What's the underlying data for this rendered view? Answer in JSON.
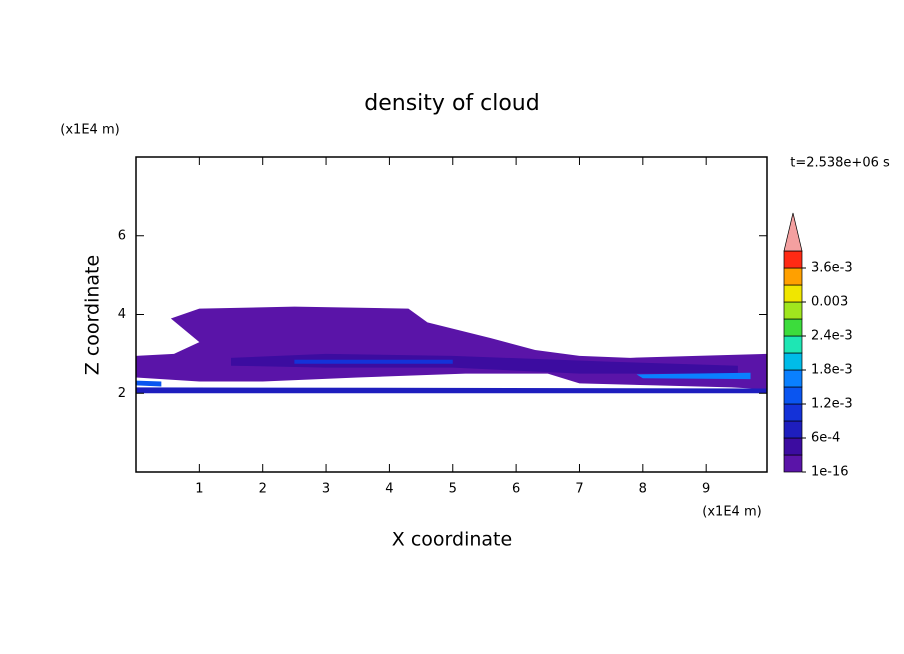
{
  "chart_data": {
    "type": "contourf",
    "title": "density of cloud",
    "x_label": "X coordinate",
    "y_label": "Z coordinate",
    "x_unit": "(x1E4 m)",
    "y_unit": "(x1E4 m)",
    "time_label": "t=2.538e+06 s",
    "xlim": [
      0,
      9.96
    ],
    "ylim": [
      0,
      8
    ],
    "xticks": [
      1,
      2,
      3,
      4,
      5,
      6,
      7,
      8,
      9
    ],
    "yticks": [
      2,
      4,
      6
    ],
    "colorbar": {
      "levels": [
        1e-16,
        0.0003,
        0.0006,
        0.0009,
        0.0012,
        0.0015,
        0.0018,
        0.0021,
        0.0024,
        0.0027,
        0.003,
        0.0033,
        0.0036
      ],
      "colors": [
        "#5a14a8",
        "#3c0ca0",
        "#1e1ebe",
        "#1432d8",
        "#0a55f0",
        "#0a80ff",
        "#00bce8",
        "#1ee6b4",
        "#3cdc3c",
        "#a0e61e",
        "#f0e600",
        "#ffa000",
        "#ff2a14"
      ],
      "ticks": [
        {
          "value": 1e-16,
          "label": "1e-16"
        },
        {
          "value": 0.0006,
          "label": "6e-4"
        },
        {
          "value": 0.0012,
          "label": "1.2e-3"
        },
        {
          "value": 0.0018,
          "label": "1.8e-3"
        },
        {
          "value": 0.0024,
          "label": "2.4e-3"
        },
        {
          "value": 0.003,
          "label": "0.003"
        },
        {
          "value": 0.0036,
          "label": "3.6e-3"
        }
      ],
      "extend_color": "#f4a0a0"
    },
    "regions": [
      {
        "level": 1e-16,
        "x": [
          0,
          0.6,
          1.0,
          0.55,
          1.0,
          2.5,
          4.3,
          4.6,
          5.6,
          6.3,
          7.0,
          7.8,
          9.96,
          9.96,
          9.4,
          8.2,
          7.0,
          6.5,
          5.2,
          3.5,
          2.0,
          1.0,
          0
        ],
        "z": [
          2.95,
          3.0,
          3.3,
          3.9,
          4.15,
          4.2,
          4.15,
          3.8,
          3.4,
          3.1,
          2.95,
          2.9,
          3.0,
          2.1,
          2.15,
          2.2,
          2.25,
          2.5,
          2.5,
          2.4,
          2.3,
          2.3,
          2.4
        ]
      },
      {
        "level": 0.0003,
        "x": [
          1.5,
          3.0,
          5.0,
          7.5,
          9.5,
          9.5,
          7.0,
          5.0,
          3.0,
          1.5
        ],
        "z": [
          2.9,
          3.0,
          2.95,
          2.8,
          2.7,
          2.5,
          2.5,
          2.65,
          2.65,
          2.7
        ]
      },
      {
        "level": 0.0009,
        "x": [
          2.5,
          5.0,
          5.0,
          2.5
        ],
        "z": [
          2.85,
          2.85,
          2.75,
          2.75
        ]
      },
      {
        "level": 0.0006,
        "x": [
          0,
          9.96,
          9.96,
          0
        ],
        "z": [
          2.0,
          2.0,
          2.12,
          2.15
        ]
      },
      {
        "level": 0.0015,
        "x": [
          7.9,
          9.7,
          9.7,
          8.0
        ],
        "z": [
          2.48,
          2.52,
          2.36,
          2.38
        ]
      },
      {
        "level": 0.0012,
        "x": [
          0,
          0.4,
          0.4,
          0
        ],
        "z": [
          2.32,
          2.3,
          2.17,
          2.2
        ]
      }
    ]
  }
}
